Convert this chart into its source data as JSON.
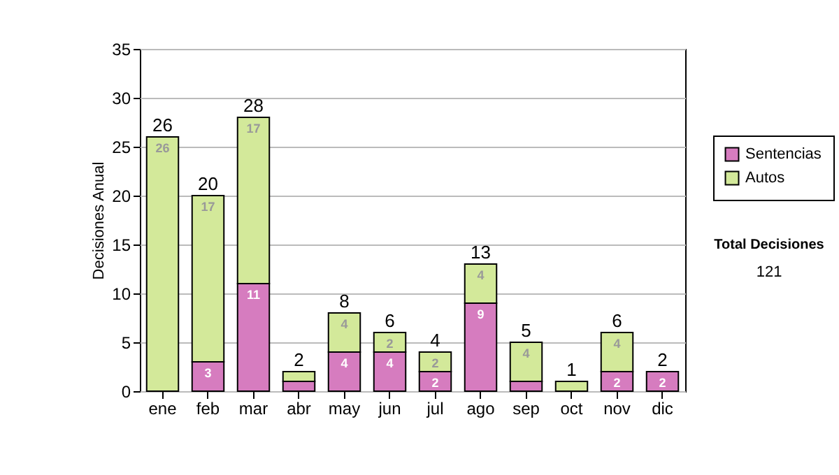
{
  "chart_data": {
    "type": "bar",
    "stacked": true,
    "ylabel": "Decisiones Anual",
    "categories": [
      "ene",
      "feb",
      "mar",
      "abr",
      "may",
      "jun",
      "jul",
      "ago",
      "sep",
      "oct",
      "nov",
      "dic"
    ],
    "series": [
      {
        "name": "Sentencias",
        "color": "#d67cbf",
        "values": [
          0,
          3,
          11,
          1,
          4,
          4,
          2,
          9,
          1,
          0,
          2,
          2
        ],
        "value_labels": [
          null,
          "3",
          "11",
          null,
          "4",
          "4",
          "2",
          "9",
          null,
          null,
          "2",
          "2"
        ]
      },
      {
        "name": "Autos",
        "color": "#d3e99a",
        "values": [
          26,
          17,
          17,
          1,
          4,
          2,
          2,
          4,
          4,
          1,
          4,
          0
        ],
        "value_labels": [
          "26",
          "17",
          "17",
          null,
          "4",
          "2",
          "2",
          "4",
          "4",
          null,
          "4",
          null
        ]
      }
    ],
    "totals": [
      "26",
      "20",
      "28",
      "2",
      "8",
      "6",
      "4",
      "13",
      "5",
      "1",
      "6",
      "2"
    ],
    "ylim": [
      0,
      35
    ],
    "yticks": [
      0,
      5,
      10,
      15,
      20,
      25,
      30,
      35
    ],
    "grid": "y",
    "legend": "right",
    "annotations": [
      "Total Decisiones",
      "121"
    ]
  }
}
